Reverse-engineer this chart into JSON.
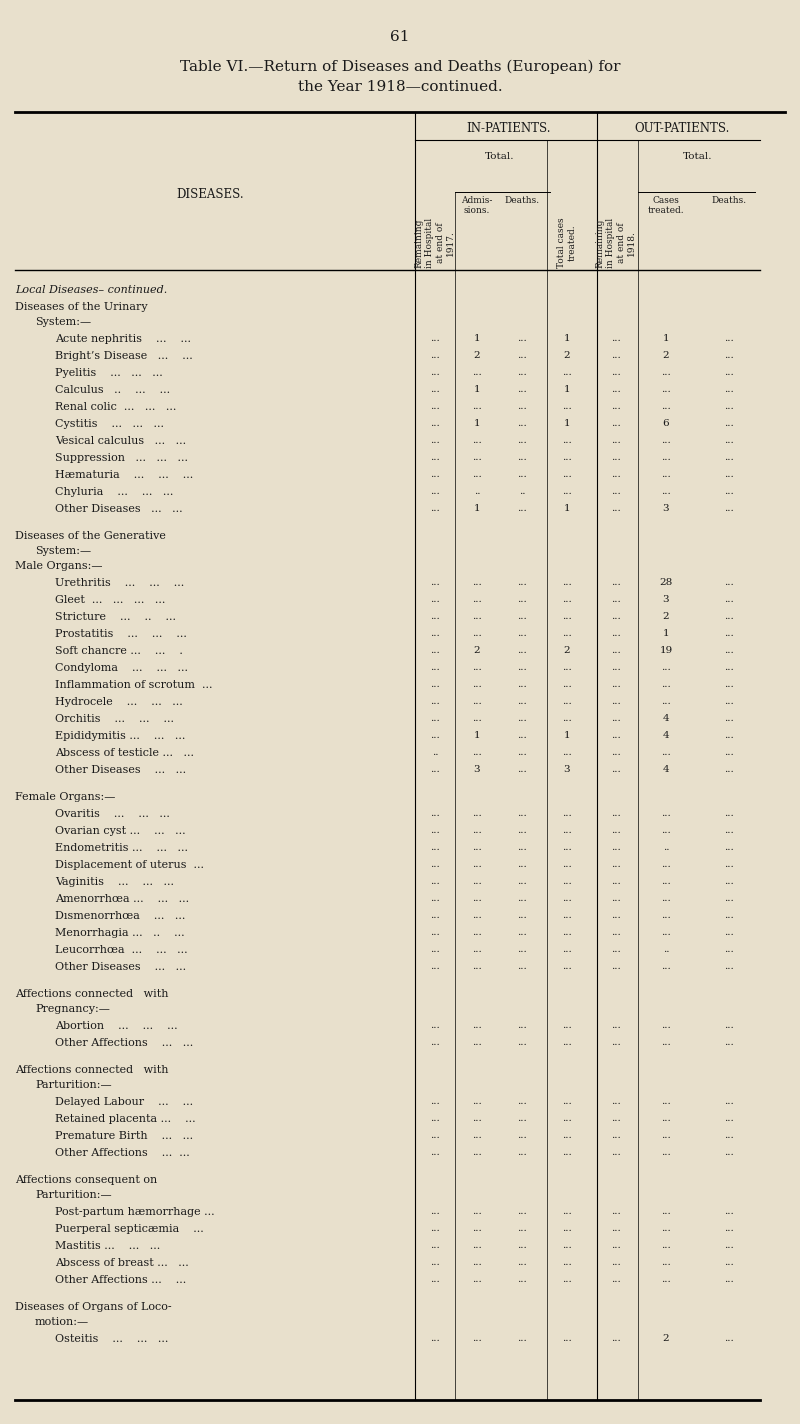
{
  "page_number": "61",
  "title_line1": "Table VI.—Return of Diseases and Deaths (European) for",
  "title_line2": "the Year 1918—continued.",
  "bg_color": "#e8e0cc",
  "text_color": "#1a1a1a",
  "sections": [
    {
      "header1": "Local Diseases– continued.",
      "header1_style": "italic",
      "header2": "Diseases of the Urinary",
      "header3": "System:—",
      "indent2": 20,
      "indent3": 35,
      "row_indent": 55,
      "rows": [
        {
          "label": "Acute nephritis    ...    ...",
          "rem17": "...",
          "adm": "1",
          "din": "...",
          "tot": "1",
          "rem18": "...",
          "cases": "1",
          "dout": "..."
        },
        {
          "label": "Bright’s Disease   ...    ...",
          "rem17": "...",
          "adm": "2",
          "din": "...",
          "tot": "2",
          "rem18": "...",
          "cases": "2",
          "dout": "..."
        },
        {
          "label": "Pyelitis    ...   ...   ...",
          "rem17": "...",
          "adm": "...",
          "din": "...",
          "tot": "...",
          "rem18": "...",
          "cases": "...",
          "dout": "..."
        },
        {
          "label": "Calculus   ..    ...    ...",
          "rem17": "...",
          "adm": "1",
          "din": "...",
          "tot": "1",
          "rem18": "...",
          "cases": "...",
          "dout": "..."
        },
        {
          "label": "Renal colic  ...   ...   ...",
          "rem17": "...",
          "adm": "...",
          "din": "...",
          "tot": "...",
          "rem18": "...",
          "cases": "...",
          "dout": "..."
        },
        {
          "label": "Cystitis    ...   ...   ...",
          "rem17": "...",
          "adm": "1",
          "din": "...",
          "tot": "1",
          "rem18": "...",
          "cases": "6",
          "dout": "..."
        },
        {
          "label": "Vesical calculus   ...   ...",
          "rem17": "...",
          "adm": "...",
          "din": "...",
          "tot": "...",
          "rem18": "...",
          "cases": "...",
          "dout": "..."
        },
        {
          "label": "Suppression   ...   ...   ...",
          "rem17": "...",
          "adm": "...",
          "din": "...",
          "tot": "...",
          "rem18": "...",
          "cases": "...",
          "dout": "..."
        },
        {
          "label": "Hæmaturia    ...    ...    ...",
          "rem17": "...",
          "adm": "...",
          "din": "...",
          "tot": "...",
          "rem18": "...",
          "cases": "...",
          "dout": "..."
        },
        {
          "label": "Chyluria    ...    ...   ...",
          "rem17": "...",
          "adm": "..",
          "din": "..",
          "tot": "...",
          "rem18": "...",
          "cases": "...",
          "dout": "..."
        },
        {
          "label": "Other Diseases   ...   ...",
          "rem17": "...",
          "adm": "1",
          "din": "...",
          "tot": "1",
          "rem18": "...",
          "cases": "3",
          "dout": "..."
        }
      ]
    },
    {
      "header1": "Diseases of the Generative",
      "header1_style": "normal",
      "header2": "System:—",
      "header3": "Male Organs:—",
      "indent2": 35,
      "indent3": 20,
      "row_indent": 55,
      "rows": [
        {
          "label": "Urethritis    ...    ...    ...",
          "rem17": "...",
          "adm": "...",
          "din": "...",
          "tot": "...",
          "rem18": "...",
          "cases": "28",
          "dout": "..."
        },
        {
          "label": "Gleet  ...   ...   ...   ...",
          "rem17": "...",
          "adm": "...",
          "din": "...",
          "tot": "...",
          "rem18": "...",
          "cases": "3",
          "dout": "..."
        },
        {
          "label": "Stricture    ...    ..    ...",
          "rem17": "...",
          "adm": "...",
          "din": "...",
          "tot": "...",
          "rem18": "...",
          "cases": "2",
          "dout": "..."
        },
        {
          "label": "Prostatitis    ...    ...    ...",
          "rem17": "...",
          "adm": "...",
          "din": "...",
          "tot": "...",
          "rem18": "...",
          "cases": "1",
          "dout": "..."
        },
        {
          "label": "Soft chancre ...    ...    .",
          "rem17": "...",
          "adm": "2",
          "din": "...",
          "tot": "2",
          "rem18": "...",
          "cases": "19",
          "dout": "..."
        },
        {
          "label": "Condyloma    ...    ...   ...",
          "rem17": "...",
          "adm": "...",
          "din": "...",
          "tot": "...",
          "rem18": "...",
          "cases": "...",
          "dout": "..."
        },
        {
          "label": "Inflammation of scrotum  ...",
          "rem17": "...",
          "adm": "...",
          "din": "...",
          "tot": "...",
          "rem18": "...",
          "cases": "...",
          "dout": "..."
        },
        {
          "label": "Hydrocele    ...    ...   ...",
          "rem17": "...",
          "adm": "...",
          "din": "...",
          "tot": "...",
          "rem18": "...",
          "cases": "...",
          "dout": "..."
        },
        {
          "label": "Orchitis    ...    ...    ...",
          "rem17": "...",
          "adm": "...",
          "din": "...",
          "tot": "...",
          "rem18": "...",
          "cases": "4",
          "dout": "..."
        },
        {
          "label": "Epididymitis ...    ...   ...",
          "rem17": "...",
          "adm": "1",
          "din": "...",
          "tot": "1",
          "rem18": "...",
          "cases": "4",
          "dout": "..."
        },
        {
          "label": "Abscess of testicle ...   ...",
          "rem17": "..",
          "adm": "...",
          "din": "...",
          "tot": "...",
          "rem18": "...",
          "cases": "...",
          "dout": "..."
        },
        {
          "label": "Other Diseases    ...   ...",
          "rem17": "...",
          "adm": "3",
          "din": "...",
          "tot": "3",
          "rem18": "...",
          "cases": "4",
          "dout": "..."
        }
      ]
    },
    {
      "header1": "Female Organs:—",
      "header1_style": "normal",
      "header2": "",
      "header3": "",
      "indent2": 35,
      "indent3": 20,
      "row_indent": 55,
      "rows": [
        {
          "label": "Ovaritis    ...    ...   ...",
          "rem17": "...",
          "adm": "...",
          "din": "...",
          "tot": "...",
          "rem18": "...",
          "cases": "...",
          "dout": "..."
        },
        {
          "label": "Ovarian cyst ...    ...   ...",
          "rem17": "...",
          "adm": "...",
          "din": "...",
          "tot": "...",
          "rem18": "...",
          "cases": "...",
          "dout": "..."
        },
        {
          "label": "Endometritis ...    ...   ...",
          "rem17": "...",
          "adm": "...",
          "din": "...",
          "tot": "...",
          "rem18": "...",
          "cases": "..",
          "dout": "..."
        },
        {
          "label": "Displacement of uterus  ...",
          "rem17": "...",
          "adm": "...",
          "din": "...",
          "tot": "...",
          "rem18": "...",
          "cases": "...",
          "dout": "..."
        },
        {
          "label": "Vaginitis    ...    ...   ...",
          "rem17": "...",
          "adm": "...",
          "din": "...",
          "tot": "...",
          "rem18": "...",
          "cases": "...",
          "dout": "..."
        },
        {
          "label": "Amenorrhœa ...    ...   ...",
          "rem17": "...",
          "adm": "...",
          "din": "...",
          "tot": "...",
          "rem18": "...",
          "cases": "...",
          "dout": "..."
        },
        {
          "label": "Dısmenorrhœa    ...   ...",
          "rem17": "...",
          "adm": "...",
          "din": "...",
          "tot": "...",
          "rem18": "...",
          "cases": "...",
          "dout": "..."
        },
        {
          "label": "Menorrhagia ...   ..    ...",
          "rem17": "...",
          "adm": "...",
          "din": "...",
          "tot": "...",
          "rem18": "...",
          "cases": "...",
          "dout": "..."
        },
        {
          "label": "Leucorrhœa  ...    ...   ...",
          "rem17": "...",
          "adm": "...",
          "din": "...",
          "tot": "...",
          "rem18": "...",
          "cases": "..",
          "dout": "..."
        },
        {
          "label": "Other Diseases    ...   ...",
          "rem17": "...",
          "adm": "...",
          "din": "...",
          "tot": "...",
          "rem18": "...",
          "cases": "...",
          "dout": "..."
        }
      ]
    },
    {
      "header1": "Affections connected   with",
      "header1_style": "smallcaps",
      "header2": "Pregnancy:—",
      "header3": "",
      "indent2": 35,
      "indent3": 20,
      "row_indent": 55,
      "rows": [
        {
          "label": "Abortion    ...    ...    ...",
          "rem17": "...",
          "adm": "...",
          "din": "...",
          "tot": "...",
          "rem18": "...",
          "cases": "...",
          "dout": "..."
        },
        {
          "label": "Other Affections    ...   ...",
          "rem17": "...",
          "adm": "...",
          "din": "...",
          "tot": "...",
          "rem18": "...",
          "cases": "...",
          "dout": "..."
        }
      ]
    },
    {
      "header1": "Affections connected   with",
      "header1_style": "smallcaps",
      "header2": "Parturition:—",
      "header3": "",
      "indent2": 35,
      "indent3": 20,
      "row_indent": 55,
      "rows": [
        {
          "label": "Delayed Labour    ...    ...",
          "rem17": "...",
          "adm": "...",
          "din": "...",
          "tot": "...",
          "rem18": "...",
          "cases": "...",
          "dout": "..."
        },
        {
          "label": "Retained placenta ...    ...",
          "rem17": "...",
          "adm": "...",
          "din": "...",
          "tot": "...",
          "rem18": "...",
          "cases": "...",
          "dout": "..."
        },
        {
          "label": "Premature Birth    ...   ...",
          "rem17": "...",
          "adm": "...",
          "din": "...",
          "tot": "...",
          "rem18": "...",
          "cases": "...",
          "dout": "..."
        },
        {
          "label": "Other Affections    ...  ...",
          "rem17": "...",
          "adm": "...",
          "din": "...",
          "tot": "...",
          "rem18": "...",
          "cases": "...",
          "dout": "..."
        }
      ]
    },
    {
      "header1": "Affections consequent on",
      "header1_style": "smallcaps",
      "header2": "Parturition:—",
      "header3": "",
      "indent2": 35,
      "indent3": 20,
      "row_indent": 55,
      "rows": [
        {
          "label": "Post-partum hæmorrhage ...",
          "rem17": "...",
          "adm": "...",
          "din": "...",
          "tot": "...",
          "rem18": "...",
          "cases": "...",
          "dout": "..."
        },
        {
          "label": "Puerperal septicæmia    ...",
          "rem17": "...",
          "adm": "...",
          "din": "...",
          "tot": "...",
          "rem18": "...",
          "cases": "...",
          "dout": "..."
        },
        {
          "label": "Mastitis ...    ...   ...",
          "rem17": "...",
          "adm": "...",
          "din": "...",
          "tot": "...",
          "rem18": "...",
          "cases": "...",
          "dout": "..."
        },
        {
          "label": "Abscess of breast ...   ...",
          "rem17": "...",
          "adm": "...",
          "din": "...",
          "tot": "...",
          "rem18": "...",
          "cases": "...",
          "dout": "..."
        },
        {
          "label": "Other Affections ...    ...",
          "rem17": "...",
          "adm": "...",
          "din": "...",
          "tot": "...",
          "rem18": "...",
          "cases": "...",
          "dout": "..."
        }
      ]
    },
    {
      "header1": "Diseases of Organs of Loco­",
      "header1_style": "smallcaps",
      "header2": "motion:—",
      "header3": "",
      "indent2": 35,
      "indent3": 20,
      "row_indent": 55,
      "rows": [
        {
          "label": "Osteitis    ...    ...   ...",
          "rem17": "...",
          "adm": "...",
          "din": "...",
          "tot": "...",
          "rem18": "...",
          "cases": "2",
          "dout": "..."
        }
      ]
    }
  ]
}
